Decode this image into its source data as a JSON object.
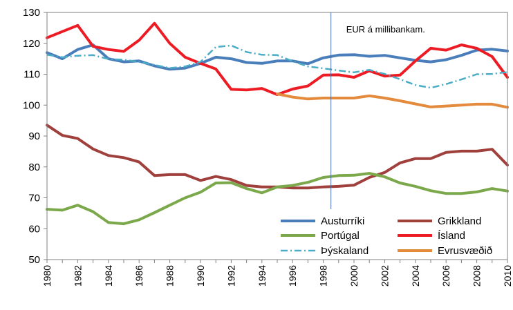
{
  "chart_data": {
    "type": "line",
    "title": "",
    "xlabel": "",
    "ylabel": "",
    "xlim": [
      1980,
      2010
    ],
    "ylim": [
      50,
      130
    ],
    "y_ticks": [
      50,
      60,
      70,
      80,
      90,
      100,
      110,
      120,
      130
    ],
    "y_tick_labels": [
      "50",
      "60",
      "70",
      "80",
      "90",
      "100",
      "110",
      "120",
      "130"
    ],
    "x_tick_labels": [
      "1980",
      "1982",
      "1984",
      "1986",
      "1988",
      "1990",
      "1992",
      "1994",
      "1996",
      "1998",
      "2000",
      "2002",
      "2004",
      "2006",
      "2008",
      "2010"
    ],
    "x_ticks": [
      1980,
      1982,
      1984,
      1986,
      1988,
      1990,
      1992,
      1994,
      1996,
      1998,
      2000,
      2002,
      2004,
      2006,
      2008,
      2010
    ],
    "grid": false,
    "legend_position": "bottom-right-inside",
    "annotation": {
      "text": "EUR á millibankam.",
      "x_line": 1998.5
    },
    "series": [
      {
        "name": "Austurríki",
        "color": "#4a7ebb",
        "dash": "solid",
        "x": [
          1980,
          1981,
          1982,
          1983,
          1984,
          1985,
          1986,
          1987,
          1988,
          1989,
          1990,
          1991,
          1992,
          1993,
          1994,
          1995,
          1996,
          1997,
          1998,
          1999,
          2000,
          2001,
          2002,
          2003,
          2004,
          2005,
          2006,
          2007,
          2008,
          2009,
          2010
        ],
        "values": [
          117,
          115,
          118,
          119.5,
          115,
          114,
          114.3,
          112.7,
          111.6,
          112,
          113.5,
          115.5,
          115,
          113.8,
          113.5,
          114.3,
          114.3,
          113.4,
          115.3,
          116.2,
          116.3,
          115.8,
          116.1,
          115.3,
          114.5,
          114,
          114.7,
          116.1,
          117.8,
          118.1,
          117.5
        ]
      },
      {
        "name": "Grikkland",
        "color": "#a0403d",
        "dash": "solid",
        "x": [
          1980,
          1981,
          1982,
          1983,
          1984,
          1985,
          1986,
          1987,
          1988,
          1989,
          1990,
          1991,
          1992,
          1993,
          1994,
          1995,
          1996,
          1997,
          1998,
          1999,
          2000,
          2001,
          2002,
          2003,
          2004,
          2005,
          2006,
          2007,
          2008,
          2009,
          2010
        ],
        "values": [
          93.5,
          90.2,
          89.2,
          85.8,
          83.7,
          83,
          81.6,
          77.2,
          77.5,
          77.5,
          75.6,
          76.9,
          75.9,
          74,
          73.5,
          73.5,
          73.2,
          73.2,
          73.5,
          73.7,
          74.1,
          76.6,
          78.2,
          81.3,
          82.7,
          82.7,
          84.7,
          85.1,
          85.1,
          85.7,
          80.6
        ]
      },
      {
        "name": "Portúgal",
        "color": "#7ba84a",
        "dash": "solid",
        "x": [
          1980,
          1981,
          1982,
          1983,
          1984,
          1985,
          1986,
          1987,
          1988,
          1989,
          1990,
          1991,
          1992,
          1993,
          1994,
          1995,
          1996,
          1997,
          1998,
          1999,
          2000,
          2001,
          2002,
          2003,
          2004,
          2005,
          2006,
          2007,
          2008,
          2009,
          2010
        ],
        "values": [
          66.3,
          66,
          67.6,
          65.5,
          62,
          61.6,
          62.9,
          65.2,
          67.6,
          70,
          71.8,
          74.8,
          74.9,
          73,
          71.6,
          73.5,
          74,
          75,
          76.6,
          77.2,
          77.3,
          77.9,
          76.8,
          74.8,
          73.7,
          72.3,
          71.4,
          71.4,
          71.9,
          73,
          72.2
        ]
      },
      {
        "name": "Ísland",
        "color": "#ed1c24",
        "dash": "solid",
        "x": [
          1980,
          1981,
          1982,
          1983,
          1984,
          1985,
          1986,
          1987,
          1988,
          1989,
          1990,
          1991,
          1992,
          1993,
          1994,
          1995,
          1996,
          1997,
          1998,
          1999,
          2000,
          2001,
          2002,
          2003,
          2004,
          2005,
          2006,
          2007,
          2008,
          2009,
          2010
        ],
        "values": [
          121.8,
          123.8,
          125.8,
          119,
          118,
          117.4,
          121,
          126.5,
          120,
          115.5,
          113.5,
          111.7,
          105.1,
          104.9,
          105.4,
          103.4,
          105.2,
          106.2,
          109.7,
          109.8,
          109,
          111.1,
          109.4,
          109.7,
          114.3,
          118.4,
          117.8,
          119.5,
          118.4,
          115.7,
          109
        ]
      },
      {
        "name": "Þýskaland",
        "color": "#4bacc6",
        "dash": "10,4,2,4",
        "x": [
          1980,
          1981,
          1982,
          1983,
          1984,
          1985,
          1986,
          1987,
          1988,
          1989,
          1990,
          1991,
          1992,
          1993,
          1994,
          1995,
          1996,
          1997,
          1998,
          1999,
          2000,
          2001,
          2002,
          2003,
          2004,
          2005,
          2006,
          2007,
          2008,
          2009,
          2010
        ],
        "values": [
          116.3,
          115.5,
          116,
          116.2,
          114.9,
          114.7,
          114,
          113,
          112,
          112.5,
          114,
          118.8,
          119.3,
          117.2,
          116.3,
          116.2,
          114.2,
          112.5,
          111.9,
          111.2,
          110.6,
          111.4,
          110.1,
          108.4,
          106.5,
          105.6,
          106.8,
          108.3,
          110,
          110.1,
          110.7
        ]
      },
      {
        "name": "Evrusvæðið",
        "color": "#e48a3c",
        "dash": "solid",
        "x": [
          1995,
          1996,
          1997,
          1998,
          1999,
          2000,
          2001,
          2002,
          2003,
          2004,
          2005,
          2006,
          2007,
          2008,
          2009,
          2010
        ],
        "values": [
          103.6,
          102.6,
          102,
          102.3,
          102.3,
          102.3,
          103,
          102.3,
          101.4,
          100.4,
          99.4,
          99.7,
          100,
          100.3,
          100.3,
          99.3
        ]
      }
    ],
    "legend_order": [
      "Austurríki",
      "Grikkland",
      "Portúgal",
      "Ísland",
      "Þýskaland",
      "Evrusvæðið"
    ]
  }
}
